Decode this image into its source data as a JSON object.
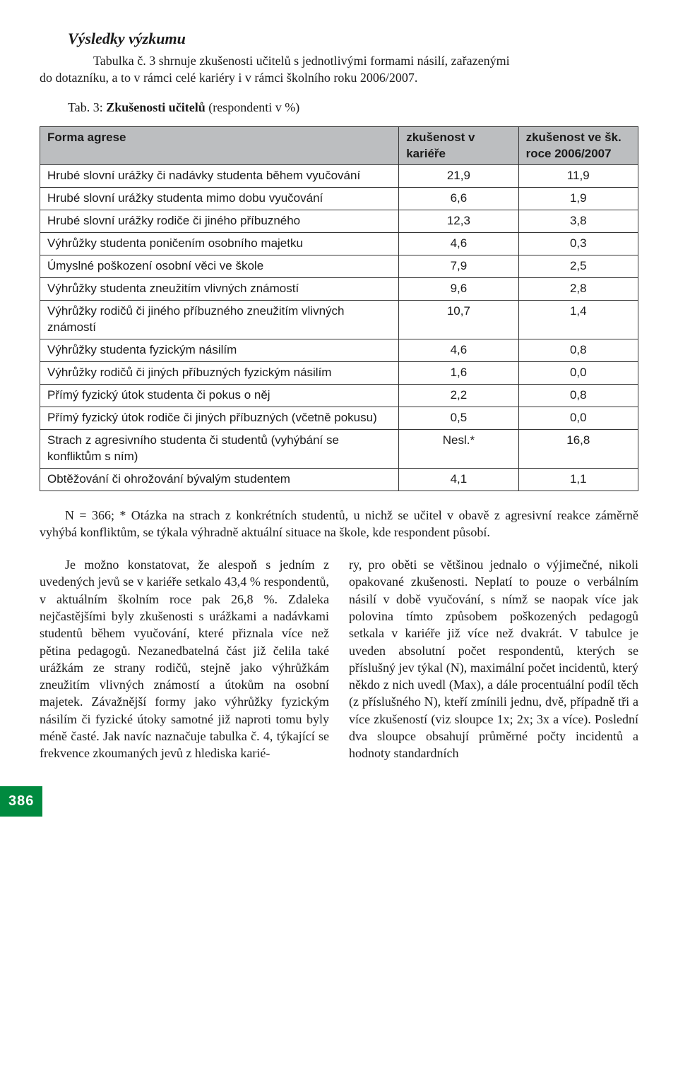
{
  "heading": "Výsledky výzkumu",
  "intro_line1": "Tabulka č. 3 shrnuje zkušenosti učitelů s jednotlivými formami násilí, zařazenými",
  "intro_line2": "do dotazníku, a to v rámci celé kariéry i v rámci školního roku 2006/2007.",
  "caption_prefix": "Tab. 3: ",
  "caption_bold": "Zkušenosti učitelů",
  "caption_suffix": "  (respondenti v %)",
  "table": {
    "header": {
      "c0": "Forma agrese",
      "c1": "zkušenost v kariéře",
      "c2": "zkušenost ve šk. roce 2006/2007"
    },
    "rows": [
      {
        "label": "Hrubé slovní urážky či nadávky studenta během vyučování",
        "v1": "21,9",
        "v2": "11,9"
      },
      {
        "label": "Hrubé slovní urážky studenta mimo dobu vyučování",
        "v1": "6,6",
        "v2": "1,9"
      },
      {
        "label": "Hrubé slovní urážky rodiče či jiného příbuzného",
        "v1": "12,3",
        "v2": "3,8"
      },
      {
        "label": "Výhrůžky studenta poničením osobního majetku",
        "v1": "4,6",
        "v2": "0,3"
      },
      {
        "label": "Úmyslné poškození osobní věci ve škole",
        "v1": "7,9",
        "v2": "2,5"
      },
      {
        "label": "Výhrůžky studenta zneužitím vlivných známostí",
        "v1": "9,6",
        "v2": "2,8"
      },
      {
        "label": "Výhrůžky rodičů či jiného příbuzného zneužitím vlivných známostí",
        "v1": "10,7",
        "v2": "1,4"
      },
      {
        "label": "Výhrůžky studenta fyzickým násilím",
        "v1": "4,6",
        "v2": "0,8"
      },
      {
        "label": "Výhrůžky rodičů či jiných příbuzných fyzickým násilím",
        "v1": "1,6",
        "v2": "0,0"
      },
      {
        "label": "Přímý fyzický útok studenta či pokus o něj",
        "v1": "2,2",
        "v2": "0,8"
      },
      {
        "label": "Přímý fyzický útok rodiče či jiných příbuzných (včetně pokusu)",
        "v1": "0,5",
        "v2": "0,0"
      },
      {
        "label": "Strach z agresivního studenta či studentů (vyhýbání se konfliktům s ním)",
        "v1": "Nesl.*",
        "v2": "16,8"
      },
      {
        "label": "Obtěžování či ohrožování bývalým studentem",
        "v1": "4,1",
        "v2": "1,1"
      }
    ]
  },
  "note": "N = 366; * Otázka na strach z konkrétních studentů, u nichž se učitel v obavě z agresivní reakce záměrně vyhýbá konfliktům, se týkala výhradně aktuální situace na škole, kde respondent působí.",
  "col_left": "Je možno konstatovat, že alespoň s jedním z uvedených jevů se v kariéře setkalo 43,4 % respondentů, v aktuálním školním roce pak 26,8 %. Zdaleka nejčastějšími byly zkušenosti s urážkami a nadávkami studentů během vyučování, které přiznala více než pětina pedagogů. Nezanedbatelná část již čelila také urážkám ze strany rodičů, stejně jako výhrůžkám zneužitím vlivných známostí a útokům na osobní majetek. Závažnější formy jako výhrůžky fyzickým násilím či fyzické útoky samotné již naproti tomu byly méně časté. Jak navíc naznačuje tabulka č. 4, týkající se frekvence zkoumaných jevů z hlediska karié-",
  "col_right": "ry, pro oběti se většinou jednalo o výjimečné, nikoli opakované zkušenosti. Neplatí to pouze o verbálním násilí v době vyučování, s nímž se naopak více jak polovina tímto způsobem poškozených pedagogů setkala v kariéře již více než dvakrát. V tabulce je uveden absolutní počet respondentů, kterých se příslušný jev týkal (N), maximální počet incidentů, který někdo z nich uvedl (Max), a dále procentuální podíl těch (z příslušného N), kteří zmínili jednu, dvě, případně tři a více zkušeností (viz sloupce 1x; 2x; 3x a více). Poslední dva sloupce obsahují průměrné počty incidentů a hodnoty standardních",
  "page_number": "386",
  "colors": {
    "page_badge_bg": "#008a3f",
    "table_header_bg": "#bcbec0"
  }
}
